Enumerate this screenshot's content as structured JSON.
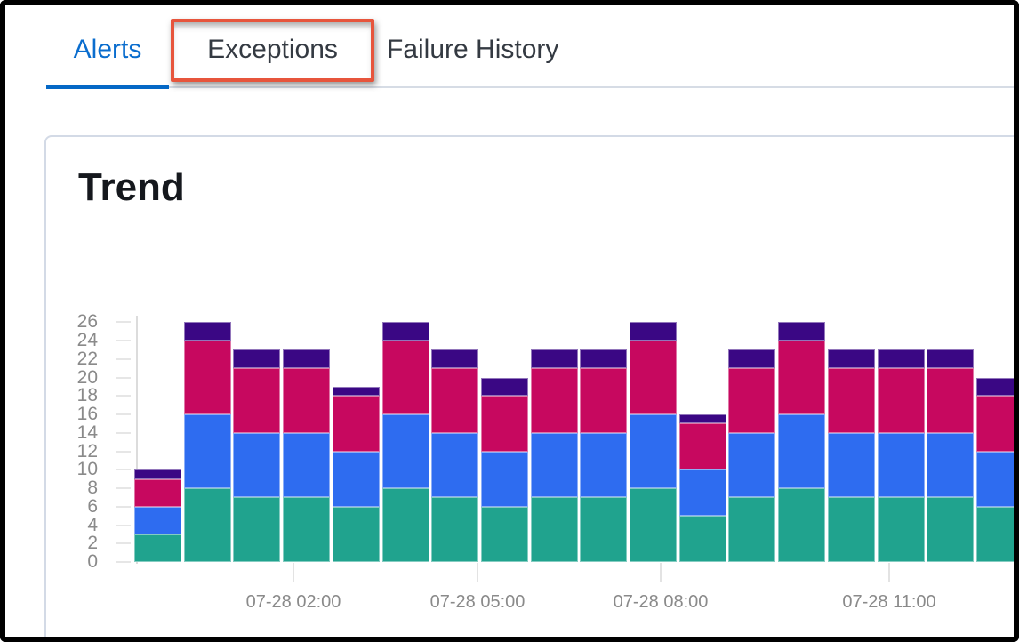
{
  "tabs": {
    "alerts": "Alerts",
    "exceptions": "Exceptions",
    "failure_history": "Failure History",
    "active_tab": "Alerts",
    "active_color": "#0a6dce",
    "indicator_color": "#0568c6",
    "inactive_color": "#343a42"
  },
  "annotation": {
    "target": "Exceptions tab",
    "box_color": "#e7553c"
  },
  "card": {
    "title": "Trend",
    "border_color": "#d3dae6"
  },
  "chart_data": {
    "type": "bar",
    "stacked": true,
    "title": "Trend",
    "legend": "none",
    "grid": false,
    "bar_count": 18,
    "ylim": [
      0,
      26
    ],
    "y_ticks": [
      0,
      2,
      4,
      6,
      8,
      10,
      12,
      14,
      16,
      18,
      20,
      22,
      24,
      26
    ],
    "x_tick_labels": [
      "07-28 02:00",
      "07-28 05:00",
      "07-28 08:00",
      "07-28 11:00"
    ],
    "axis_label_color": "#8a8a8a",
    "series": [
      {
        "name": "bottom-teal",
        "color": "#20a38e",
        "values": [
          3,
          8,
          7,
          7,
          6,
          8,
          7,
          6,
          7,
          7,
          8,
          5,
          7,
          8,
          7,
          7,
          7,
          6
        ]
      },
      {
        "name": "mid-blue",
        "color": "#2e6cf0",
        "values": [
          3,
          8,
          7,
          7,
          6,
          8,
          7,
          6,
          7,
          7,
          8,
          5,
          7,
          8,
          7,
          7,
          7,
          6
        ]
      },
      {
        "name": "mid-crimson",
        "color": "#c7085f",
        "values": [
          3,
          8,
          7,
          7,
          6,
          8,
          7,
          6,
          7,
          7,
          8,
          5,
          7,
          8,
          7,
          7,
          7,
          6
        ]
      },
      {
        "name": "top-purple",
        "color": "#3a0784",
        "values": [
          1,
          2,
          2,
          2,
          1,
          2,
          2,
          2,
          2,
          2,
          2,
          1,
          2,
          2,
          2,
          2,
          2,
          2
        ]
      }
    ],
    "totals": [
      10,
      26,
      23,
      23,
      19,
      26,
      23,
      20,
      23,
      23,
      26,
      16,
      23,
      26,
      23,
      23,
      23,
      20
    ]
  }
}
